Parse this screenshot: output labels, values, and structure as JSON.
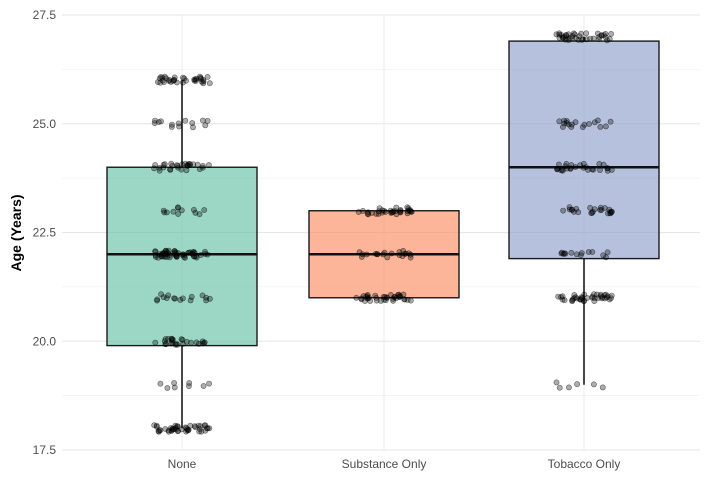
{
  "chart_data": {
    "type": "box",
    "title": "",
    "xlabel": "",
    "ylabel": "Age (Years)",
    "ylim": [
      17.5,
      27.5
    ],
    "yticks": [
      17.5,
      20.0,
      22.5,
      25.0,
      27.5
    ],
    "ytick_labels": [
      "17.5",
      "20.0",
      "22.5",
      "25.0",
      "27.5"
    ],
    "grid": true,
    "legend": "none",
    "categories": [
      "None",
      "Substance Only",
      "Tobacco Only"
    ],
    "boxes": [
      {
        "category": "None",
        "whisker_low": 18.0,
        "q1": 19.9,
        "median": 22.0,
        "q3": 24.0,
        "whisker_high": 26.0,
        "color": "#66c2a5"
      },
      {
        "category": "Substance Only",
        "whisker_low": 21.0,
        "q1": 21.0,
        "median": 22.0,
        "q3": 23.0,
        "whisker_high": 23.0,
        "color": "#fc8d62"
      },
      {
        "category": "Tobacco Only",
        "whisker_low": 19.0,
        "q1": 21.9,
        "median": 24.0,
        "q3": 26.9,
        "whisker_high": 27.0,
        "color": "#8da0cb"
      }
    ],
    "jitter_clusters": [
      {
        "category": "None",
        "age": 18.0,
        "count": 45
      },
      {
        "category": "None",
        "age": 19.0,
        "count": 8
      },
      {
        "category": "None",
        "age": 20.0,
        "count": 26
      },
      {
        "category": "None",
        "age": 21.0,
        "count": 16
      },
      {
        "category": "None",
        "age": 22.0,
        "count": 55
      },
      {
        "category": "None",
        "age": 23.0,
        "count": 12
      },
      {
        "category": "None",
        "age": 24.0,
        "count": 30
      },
      {
        "category": "None",
        "age": 25.0,
        "count": 14
      },
      {
        "category": "None",
        "age": 26.0,
        "count": 35
      },
      {
        "category": "Substance Only",
        "age": 21.0,
        "count": 38
      },
      {
        "category": "Substance Only",
        "age": 22.0,
        "count": 20
      },
      {
        "category": "Substance Only",
        "age": 23.0,
        "count": 35
      },
      {
        "category": "Tobacco Only",
        "age": 19.0,
        "count": 6
      },
      {
        "category": "Tobacco Only",
        "age": 21.0,
        "count": 40
      },
      {
        "category": "Tobacco Only",
        "age": 22.0,
        "count": 14
      },
      {
        "category": "Tobacco Only",
        "age": 23.0,
        "count": 24
      },
      {
        "category": "Tobacco Only",
        "age": 24.0,
        "count": 28
      },
      {
        "category": "Tobacco Only",
        "age": 25.0,
        "count": 18
      },
      {
        "category": "Tobacco Only",
        "age": 27.0,
        "count": 40
      }
    ]
  }
}
